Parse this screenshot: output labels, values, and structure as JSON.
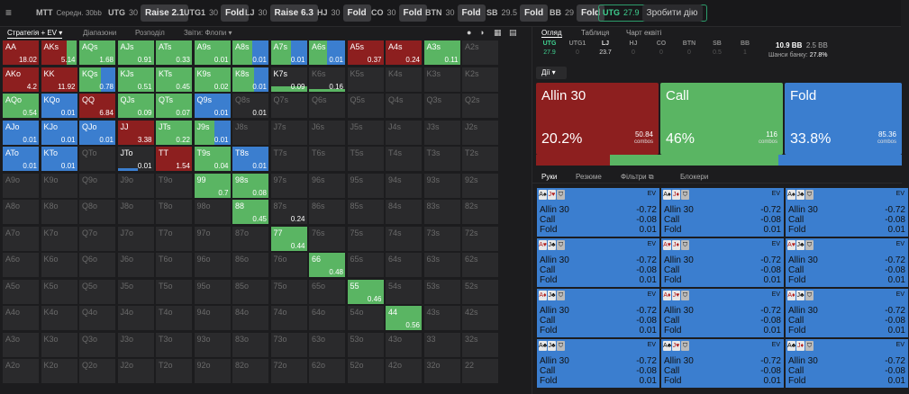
{
  "topbar": {
    "game": "MTT",
    "game_sub": "Середн. 30bb",
    "positions": [
      {
        "pos": "UTG",
        "stack": "30",
        "action": "Raise 2.1"
      },
      {
        "pos": "UTG1",
        "stack": "30",
        "action": "Fold"
      },
      {
        "pos": "LJ",
        "stack": "30",
        "action": "Raise 6.3"
      },
      {
        "pos": "HJ",
        "stack": "30",
        "action": "Fold"
      },
      {
        "pos": "CO",
        "stack": "30",
        "action": "Fold"
      },
      {
        "pos": "BTN",
        "stack": "30",
        "action": "Fold"
      },
      {
        "pos": "SB",
        "stack": "29.5",
        "action": "Fold"
      },
      {
        "pos": "BB",
        "stack": "29",
        "action": "Fold"
      }
    ],
    "active": {
      "pos": "UTG",
      "stack": "27.9",
      "action": "Зробити дію"
    }
  },
  "left_tabs": {
    "strategy": "Стратегія + EV",
    "ranges": "Діапазони",
    "breakdown": "Розподіл",
    "reports": "Звіти: Флопи"
  },
  "colors": {
    "raise": "#8d1f1f",
    "call": "#5ab563",
    "fold": "#3b7ecf",
    "empty": "#2a2a2c"
  },
  "grid": [
    [
      {
        "n": "AA",
        "ev": "18.02"
      },
      {
        "n": "AKs",
        "ev": "5.14"
      },
      {
        "n": "AQs",
        "ev": "1.68"
      },
      {
        "n": "AJs",
        "ev": "0.91"
      },
      {
        "n": "ATs",
        "ev": "0.33"
      },
      {
        "n": "A9s",
        "ev": "0.01"
      },
      {
        "n": "A8s",
        "ev": "0.01"
      },
      {
        "n": "A7s",
        "ev": "0.01"
      },
      {
        "n": "A6s",
        "ev": "0.01"
      },
      {
        "n": "A5s",
        "ev": "0.37"
      },
      {
        "n": "A4s",
        "ev": "0.24"
      },
      {
        "n": "A3s",
        "ev": "0.11"
      },
      {
        "n": "A2s",
        "ev": ""
      }
    ],
    [
      {
        "n": "AKo",
        "ev": "4.2"
      },
      {
        "n": "KK",
        "ev": "11.92"
      },
      {
        "n": "KQs",
        "ev": "0.78"
      },
      {
        "n": "KJs",
        "ev": "0.51"
      },
      {
        "n": "KTs",
        "ev": "0.45"
      },
      {
        "n": "K9s",
        "ev": "0.02"
      },
      {
        "n": "K8s",
        "ev": "0.01"
      },
      {
        "n": "K7s",
        "ev": "0.09"
      },
      {
        "n": "K6s",
        "ev": "0.16"
      },
      {
        "n": "K5s",
        "ev": ""
      },
      {
        "n": "K4s",
        "ev": ""
      },
      {
        "n": "K3s",
        "ev": ""
      },
      {
        "n": "K2s",
        "ev": ""
      }
    ],
    [
      {
        "n": "AQo",
        "ev": "0.54"
      },
      {
        "n": "KQo",
        "ev": "0.01"
      },
      {
        "n": "QQ",
        "ev": "6.84"
      },
      {
        "n": "QJs",
        "ev": "0.09"
      },
      {
        "n": "QTs",
        "ev": "0.07"
      },
      {
        "n": "Q9s",
        "ev": "0.01"
      },
      {
        "n": "Q8s",
        "ev": "0.01"
      },
      {
        "n": "Q7s",
        "ev": ""
      },
      {
        "n": "Q6s",
        "ev": ""
      },
      {
        "n": "Q5s",
        "ev": ""
      },
      {
        "n": "Q4s",
        "ev": ""
      },
      {
        "n": "Q3s",
        "ev": ""
      },
      {
        "n": "Q2s",
        "ev": ""
      }
    ],
    [
      {
        "n": "AJo",
        "ev": "0.01"
      },
      {
        "n": "KJo",
        "ev": "0.01"
      },
      {
        "n": "QJo",
        "ev": "0.01"
      },
      {
        "n": "JJ",
        "ev": "3.38"
      },
      {
        "n": "JTs",
        "ev": "0.22"
      },
      {
        "n": "J9s",
        "ev": "0.01"
      },
      {
        "n": "J8s",
        "ev": ""
      },
      {
        "n": "J7s",
        "ev": ""
      },
      {
        "n": "J6s",
        "ev": ""
      },
      {
        "n": "J5s",
        "ev": ""
      },
      {
        "n": "J4s",
        "ev": ""
      },
      {
        "n": "J3s",
        "ev": ""
      },
      {
        "n": "J2s",
        "ev": ""
      }
    ],
    [
      {
        "n": "ATo",
        "ev": "0.01"
      },
      {
        "n": "KTo",
        "ev": "0.01"
      },
      {
        "n": "QTo",
        "ev": ""
      },
      {
        "n": "JTo",
        "ev": "0.01"
      },
      {
        "n": "TT",
        "ev": "1.54"
      },
      {
        "n": "T9s",
        "ev": "0.04"
      },
      {
        "n": "T8s",
        "ev": "0.01"
      },
      {
        "n": "T7s",
        "ev": ""
      },
      {
        "n": "T6s",
        "ev": ""
      },
      {
        "n": "T5s",
        "ev": ""
      },
      {
        "n": "T4s",
        "ev": ""
      },
      {
        "n": "T3s",
        "ev": ""
      },
      {
        "n": "T2s",
        "ev": ""
      }
    ],
    [
      {
        "n": "A9o",
        "ev": ""
      },
      {
        "n": "K9o",
        "ev": ""
      },
      {
        "n": "Q9o",
        "ev": ""
      },
      {
        "n": "J9o",
        "ev": ""
      },
      {
        "n": "T9o",
        "ev": ""
      },
      {
        "n": "99",
        "ev": "0.7"
      },
      {
        "n": "98s",
        "ev": "0.08"
      },
      {
        "n": "97s",
        "ev": ""
      },
      {
        "n": "96s",
        "ev": ""
      },
      {
        "n": "95s",
        "ev": ""
      },
      {
        "n": "94s",
        "ev": ""
      },
      {
        "n": "93s",
        "ev": ""
      },
      {
        "n": "92s",
        "ev": ""
      }
    ],
    [
      {
        "n": "A8o",
        "ev": ""
      },
      {
        "n": "K8o",
        "ev": ""
      },
      {
        "n": "Q8o",
        "ev": ""
      },
      {
        "n": "J8o",
        "ev": ""
      },
      {
        "n": "T8o",
        "ev": ""
      },
      {
        "n": "98o",
        "ev": ""
      },
      {
        "n": "88",
        "ev": "0.45"
      },
      {
        "n": "87s",
        "ev": "0.24"
      },
      {
        "n": "86s",
        "ev": ""
      },
      {
        "n": "85s",
        "ev": ""
      },
      {
        "n": "84s",
        "ev": ""
      },
      {
        "n": "83s",
        "ev": ""
      },
      {
        "n": "82s",
        "ev": ""
      }
    ],
    [
      {
        "n": "A7o",
        "ev": ""
      },
      {
        "n": "K7o",
        "ev": ""
      },
      {
        "n": "Q7o",
        "ev": ""
      },
      {
        "n": "J7o",
        "ev": ""
      },
      {
        "n": "T7o",
        "ev": ""
      },
      {
        "n": "97o",
        "ev": ""
      },
      {
        "n": "87o",
        "ev": ""
      },
      {
        "n": "77",
        "ev": "0.44"
      },
      {
        "n": "76s",
        "ev": ""
      },
      {
        "n": "75s",
        "ev": ""
      },
      {
        "n": "74s",
        "ev": ""
      },
      {
        "n": "73s",
        "ev": ""
      },
      {
        "n": "72s",
        "ev": ""
      }
    ],
    [
      {
        "n": "A6o",
        "ev": ""
      },
      {
        "n": "K6o",
        "ev": ""
      },
      {
        "n": "Q6o",
        "ev": ""
      },
      {
        "n": "J6o",
        "ev": ""
      },
      {
        "n": "T6o",
        "ev": ""
      },
      {
        "n": "96o",
        "ev": ""
      },
      {
        "n": "86o",
        "ev": ""
      },
      {
        "n": "76o",
        "ev": ""
      },
      {
        "n": "66",
        "ev": "0.48"
      },
      {
        "n": "65s",
        "ev": ""
      },
      {
        "n": "64s",
        "ev": ""
      },
      {
        "n": "63s",
        "ev": ""
      },
      {
        "n": "62s",
        "ev": ""
      }
    ],
    [
      {
        "n": "A5o",
        "ev": ""
      },
      {
        "n": "K5o",
        "ev": ""
      },
      {
        "n": "Q5o",
        "ev": ""
      },
      {
        "n": "J5o",
        "ev": ""
      },
      {
        "n": "T5o",
        "ev": ""
      },
      {
        "n": "95o",
        "ev": ""
      },
      {
        "n": "85o",
        "ev": ""
      },
      {
        "n": "75o",
        "ev": ""
      },
      {
        "n": "65o",
        "ev": ""
      },
      {
        "n": "55",
        "ev": "0.46"
      },
      {
        "n": "54s",
        "ev": ""
      },
      {
        "n": "53s",
        "ev": ""
      },
      {
        "n": "52s",
        "ev": ""
      }
    ],
    [
      {
        "n": "A4o",
        "ev": ""
      },
      {
        "n": "K4o",
        "ev": ""
      },
      {
        "n": "Q4o",
        "ev": ""
      },
      {
        "n": "J4o",
        "ev": ""
      },
      {
        "n": "T4o",
        "ev": ""
      },
      {
        "n": "94o",
        "ev": ""
      },
      {
        "n": "84o",
        "ev": ""
      },
      {
        "n": "74o",
        "ev": ""
      },
      {
        "n": "64o",
        "ev": ""
      },
      {
        "n": "54o",
        "ev": ""
      },
      {
        "n": "44",
        "ev": "0.56"
      },
      {
        "n": "43s",
        "ev": ""
      },
      {
        "n": "42s",
        "ev": ""
      }
    ],
    [
      {
        "n": "A3o",
        "ev": ""
      },
      {
        "n": "K3o",
        "ev": ""
      },
      {
        "n": "Q3o",
        "ev": ""
      },
      {
        "n": "J3o",
        "ev": ""
      },
      {
        "n": "T3o",
        "ev": ""
      },
      {
        "n": "93o",
        "ev": ""
      },
      {
        "n": "83o",
        "ev": ""
      },
      {
        "n": "73o",
        "ev": ""
      },
      {
        "n": "63o",
        "ev": ""
      },
      {
        "n": "53o",
        "ev": ""
      },
      {
        "n": "43o",
        "ev": ""
      },
      {
        "n": "33",
        "ev": ""
      },
      {
        "n": "32s",
        "ev": ""
      }
    ],
    [
      {
        "n": "A2o",
        "ev": ""
      },
      {
        "n": "K2o",
        "ev": ""
      },
      {
        "n": "Q2o",
        "ev": ""
      },
      {
        "n": "J2o",
        "ev": ""
      },
      {
        "n": "T2o",
        "ev": ""
      },
      {
        "n": "92o",
        "ev": ""
      },
      {
        "n": "82o",
        "ev": ""
      },
      {
        "n": "72o",
        "ev": ""
      },
      {
        "n": "62o",
        "ev": ""
      },
      {
        "n": "52o",
        "ev": ""
      },
      {
        "n": "42o",
        "ev": ""
      },
      {
        "n": "32o",
        "ev": ""
      },
      {
        "n": "22",
        "ev": ""
      }
    ]
  ],
  "right": {
    "tabs": {
      "overview": "Огляд",
      "table": "Таблиця",
      "equity_chart": "Чарт еквіті"
    },
    "mini_positions": [
      {
        "p": "UTG",
        "s": "27.9"
      },
      {
        "p": "UTG1",
        "s": "0"
      },
      {
        "p": "LJ",
        "s": "23.7"
      },
      {
        "p": "HJ",
        "s": "0"
      },
      {
        "p": "CO",
        "s": "0"
      },
      {
        "p": "BTN",
        "s": "0"
      },
      {
        "p": "SB",
        "s": "0.5"
      },
      {
        "p": "BB",
        "s": "1"
      }
    ],
    "pot": "10.9 BB",
    "bet": "2.5 BB",
    "odds_label": "Шанси банку:",
    "odds": "27.8%",
    "actions_label": "Дії",
    "boxes": [
      {
        "name": "Allin 30",
        "pct": "20.2%",
        "combos": "50.84",
        "combos_label": "combos"
      },
      {
        "name": "Call",
        "pct": "46%",
        "combos": "116",
        "combos_label": "combos"
      },
      {
        "name": "Fold",
        "pct": "33.8%",
        "combos": "85.36",
        "combos_label": "combos"
      }
    ],
    "hand_tabs": {
      "hands": "Руки",
      "summary": "Резюме",
      "filters": "Фільтри",
      "blockers": "Блокери"
    },
    "ev_label": "EV",
    "hand_cards": [
      [
        "A♠",
        "J♥"
      ],
      [
        "A♠",
        "J♦"
      ],
      [
        "A♠",
        "J♣"
      ],
      [
        "A♥",
        "J♣"
      ],
      [
        "A♥",
        "J♦"
      ],
      [
        "A♥",
        "J♣"
      ],
      [
        "A♦",
        "J♣"
      ],
      [
        "A♦",
        "J♥"
      ],
      [
        "A♦",
        "J♣"
      ],
      [
        "A♣",
        "J♣"
      ],
      [
        "A♣",
        "J♥"
      ],
      [
        "A♣",
        "J♦"
      ]
    ],
    "hand_rows": [
      {
        "a": "Allin 30",
        "v": "-0.72"
      },
      {
        "a": "Call",
        "v": "-0.08"
      },
      {
        "a": "Fold",
        "v": "0.01"
      }
    ]
  }
}
